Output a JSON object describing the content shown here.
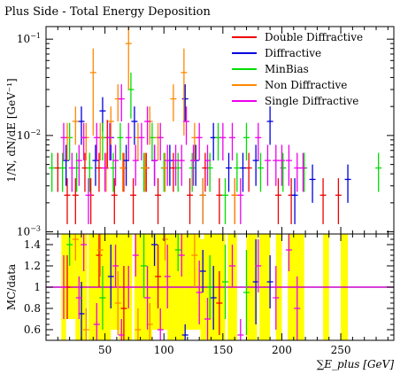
{
  "chart_data": [
    {
      "type": "scatter",
      "title": "Plus Side - Total Energy Deposition",
      "xlabel": "∑E_plus [GeV]",
      "ylabel": "1/N, dN/dE [GeV⁻¹]",
      "xlim": [
        0,
        295
      ],
      "ylim": [
        0.00095,
        0.135
      ],
      "yscale": "log",
      "y_ticks": [
        {
          "value": 0.001,
          "base": "10",
          "exp": "−3"
        },
        {
          "value": 0.01,
          "base": "10",
          "exp": "−2"
        },
        {
          "value": 0.1,
          "base": "10",
          "exp": "−1"
        }
      ],
      "legend_position": "top-right",
      "series": [
        {
          "name": "Double Diffractive",
          "color": "#ee0000",
          "points": [
            [
              10,
              0.0046,
              0.002
            ],
            [
              18,
              0.0024,
              0.0012
            ],
            [
              25,
              0.0024,
              0.0012
            ],
            [
              33,
              0.0046,
              0.002
            ],
            [
              38,
              0.0024,
              0.0012
            ],
            [
              45,
              0.0046,
              0.002
            ],
            [
              52,
              0.0095,
              0.005
            ],
            [
              58,
              0.0024,
              0.0012
            ],
            [
              66,
              0.0046,
              0.002
            ],
            [
              74,
              0.0024,
              0.0012
            ],
            [
              85,
              0.0046,
              0.002
            ],
            [
              95,
              0.0024,
              0.0012
            ],
            [
              108,
              0.0046,
              0.002
            ],
            [
              122,
              0.0024,
              0.0012
            ],
            [
              135,
              0.0046,
              0.002
            ],
            [
              147,
              0.0024,
              0.0012
            ],
            [
              160,
              0.0024,
              0.0012
            ],
            [
              172,
              0.0046,
              0.002
            ],
            [
              197,
              0.0024,
              0.0012
            ],
            [
              208,
              0.0024,
              0.0012
            ],
            [
              235,
              0.0024,
              0.0012
            ],
            [
              248,
              0.0024,
              0.0012
            ]
          ]
        },
        {
          "name": "Diffractive",
          "color": "#0000dd",
          "points": [
            [
              17,
              0.0055,
              0.0025
            ],
            [
              30,
              0.014,
              0.006
            ],
            [
              42,
              0.0055,
              0.0025
            ],
            [
              48,
              0.018,
              0.007
            ],
            [
              55,
              0.0095,
              0.004
            ],
            [
              68,
              0.0055,
              0.0025
            ],
            [
              75,
              0.014,
              0.006
            ],
            [
              92,
              0.0055,
              0.0025
            ],
            [
              105,
              0.0055,
              0.0025
            ],
            [
              118,
              0.024,
              0.01
            ],
            [
              127,
              0.0055,
              0.0025
            ],
            [
              133,
              0.0024,
              0.0012
            ],
            [
              142,
              0.0095,
              0.004
            ],
            [
              155,
              0.0046,
              0.002
            ],
            [
              167,
              0.0046,
              0.002
            ],
            [
              178,
              0.0055,
              0.0025
            ],
            [
              190,
              0.014,
              0.006
            ],
            [
              211,
              0.0024,
              0.0012
            ],
            [
              226,
              0.0035,
              0.0015
            ],
            [
              256,
              0.0035,
              0.0015
            ]
          ]
        },
        {
          "name": "MinBias",
          "color": "#00dd00",
          "points": [
            [
              5,
              0.0046,
              0.002
            ],
            [
              14,
              0.0046,
              0.002
            ],
            [
              20,
              0.0095,
              0.004
            ],
            [
              26,
              0.0046,
              0.002
            ],
            [
              37,
              0.0046,
              0.002
            ],
            [
              48,
              0.0095,
              0.004
            ],
            [
              57,
              0.0046,
              0.002
            ],
            [
              63,
              0.0095,
              0.004
            ],
            [
              72,
              0.03,
              0.015
            ],
            [
              83,
              0.0046,
              0.002
            ],
            [
              90,
              0.0095,
              0.004
            ],
            [
              100,
              0.0046,
              0.002
            ],
            [
              112,
              0.0046,
              0.002
            ],
            [
              124,
              0.0046,
              0.002
            ],
            [
              139,
              0.0046,
              0.002
            ],
            [
              146,
              0.0095,
              0.004
            ],
            [
              152,
              0.0024,
              0.0012
            ],
            [
              162,
              0.0046,
              0.002
            ],
            [
              170,
              0.0095,
              0.004
            ],
            [
              182,
              0.0046,
              0.002
            ],
            [
              201,
              0.0046,
              0.002
            ],
            [
              219,
              0.0046,
              0.002
            ],
            [
              282,
              0.0046,
              0.002
            ]
          ]
        },
        {
          "name": "Non Diffractive",
          "color": "#ff8800",
          "points": [
            [
              18,
              0.0095,
              0.004
            ],
            [
              25,
              0.014,
              0.006
            ],
            [
              34,
              0.0095,
              0.004
            ],
            [
              40,
              0.045,
              0.035
            ],
            [
              46,
              0.0095,
              0.004
            ],
            [
              51,
              0.0046,
              0.002
            ],
            [
              55,
              0.014,
              0.006
            ],
            [
              61,
              0.024,
              0.01
            ],
            [
              65,
              0.0046,
              0.002
            ],
            [
              70,
              0.09,
              0.06
            ],
            [
              78,
              0.0095,
              0.004
            ],
            [
              84,
              0.0046,
              0.002
            ],
            [
              88,
              0.014,
              0.006
            ],
            [
              95,
              0.0095,
              0.004
            ],
            [
              101,
              0.0046,
              0.002
            ],
            [
              108,
              0.024,
              0.01
            ],
            [
              117,
              0.045,
              0.035
            ],
            [
              126,
              0.0095,
              0.004
            ],
            [
              133,
              0.0024,
              0.0012
            ],
            [
              160,
              0.0024,
              0.0012
            ]
          ]
        },
        {
          "name": "Single Diffractive",
          "color": "#ee00ee",
          "points": [
            [
              15,
              0.0095,
              0.004
            ],
            [
              22,
              0.0046,
              0.002
            ],
            [
              28,
              0.0055,
              0.0025
            ],
            [
              32,
              0.0095,
              0.004
            ],
            [
              36,
              0.0024,
              0.0012
            ],
            [
              43,
              0.0095,
              0.004
            ],
            [
              50,
              0.0046,
              0.002
            ],
            [
              54,
              0.0095,
              0.004
            ],
            [
              59,
              0.0055,
              0.0025
            ],
            [
              64,
              0.024,
              0.01
            ],
            [
              70,
              0.0095,
              0.004
            ],
            [
              76,
              0.0055,
              0.0025
            ],
            [
              81,
              0.0095,
              0.004
            ],
            [
              86,
              0.014,
              0.006
            ],
            [
              92,
              0.0055,
              0.0025
            ],
            [
              97,
              0.0095,
              0.004
            ],
            [
              103,
              0.0055,
              0.0025
            ],
            [
              110,
              0.0055,
              0.0025
            ],
            [
              115,
              0.0055,
              0.0025
            ],
            [
              119,
              0.014,
              0.006
            ],
            [
              125,
              0.0055,
              0.0025
            ],
            [
              130,
              0.0095,
              0.004
            ],
            [
              137,
              0.0055,
              0.0025
            ],
            [
              150,
              0.0095,
              0.004
            ],
            [
              158,
              0.0095,
              0.004
            ],
            [
              165,
              0.0024,
              0.0012
            ],
            [
              180,
              0.0095,
              0.004
            ],
            [
              188,
              0.0055,
              0.0025
            ],
            [
              195,
              0.0055,
              0.0025
            ],
            [
              200,
              0.0055,
              0.0025
            ],
            [
              206,
              0.0055,
              0.0025
            ],
            [
              213,
              0.0046,
              0.002
            ],
            [
              218,
              0.0046,
              0.002
            ]
          ]
        }
      ]
    },
    {
      "type": "scatter",
      "xlabel": "∑E_plus [GeV]",
      "ylabel": "MC/data",
      "xlim": [
        0,
        295
      ],
      "ylim": [
        0.5,
        1.5
      ],
      "x_ticks": [
        50,
        100,
        150,
        200,
        250
      ],
      "y_ticks": [
        0.6,
        0.8,
        1,
        1.2,
        1.4
      ],
      "reference_line": {
        "value": 1.0,
        "color": "#cc00cc"
      },
      "error_band": {
        "color": "#ffff00",
        "segments": [
          [
            13,
            17,
            0.5,
            1.5
          ],
          [
            17,
            25,
            0.7,
            1.5
          ],
          [
            25,
            35,
            0.5,
            1.5
          ],
          [
            36,
            55,
            0.5,
            1.5
          ],
          [
            55,
            62,
            0.6,
            1.5
          ],
          [
            62,
            73,
            0.5,
            1.5
          ],
          [
            75,
            90,
            0.5,
            1.5
          ],
          [
            90,
            103,
            0.6,
            1.5
          ],
          [
            103,
            118,
            0.5,
            1.5
          ],
          [
            118,
            131,
            0.6,
            1.5
          ],
          [
            131,
            134,
            0.5,
            1.45
          ],
          [
            134,
            152,
            0.5,
            1.5
          ],
          [
            154,
            162,
            0.5,
            1.5
          ],
          [
            170,
            179,
            0.5,
            1.5
          ],
          [
            181,
            190,
            0.5,
            1.5
          ],
          [
            195,
            200,
            0.5,
            1.5
          ],
          [
            205,
            219,
            0.5,
            1.5
          ],
          [
            235,
            240,
            0.5,
            1.5
          ],
          [
            250,
            256,
            0.5,
            1.5
          ]
        ]
      },
      "series": [
        {
          "name": "Double Diffractive",
          "color": "#ee0000",
          "points": [
            [
              18,
              1.0,
              0.3
            ],
            [
              45,
              1.3,
              0.3
            ],
            [
              66,
              0.8,
              0.4
            ],
            [
              95,
              1.1,
              0.3
            ],
            [
              147,
              0.85,
              0.3
            ]
          ]
        },
        {
          "name": "Diffractive",
          "color": "#0000dd",
          "points": [
            [
              30,
              0.75,
              0.3
            ],
            [
              55,
              1.1,
              0.3
            ],
            [
              92,
              1.4,
              0.2
            ],
            [
              118,
              0.55,
              0.1
            ],
            [
              133,
              1.15,
              0.2
            ],
            [
              142,
              0.9,
              0.3
            ],
            [
              178,
              1.05,
              0.4
            ],
            [
              190,
              1.05,
              0.25
            ]
          ]
        },
        {
          "name": "MinBias",
          "color": "#00dd00",
          "points": [
            [
              20,
              1.4,
              0.2
            ],
            [
              48,
              0.9,
              0.3
            ],
            [
              83,
              1.2,
              0.3
            ],
            [
              112,
              1.35,
              0.2
            ],
            [
              139,
              1.0,
              0.3
            ],
            [
              152,
              1.05,
              0.35
            ],
            [
              170,
              0.95,
              0.4
            ]
          ]
        },
        {
          "name": "Non Diffractive",
          "color": "#ff8800",
          "points": [
            [
              25,
              1.45,
              0.2
            ],
            [
              34,
              0.6,
              0.2
            ],
            [
              46,
              1.35,
              0.25
            ],
            [
              61,
              0.85,
              0.3
            ],
            [
              78,
              0.6,
              0.2
            ],
            [
              88,
              0.65,
              0.2
            ],
            [
              101,
              1.45,
              0.2
            ],
            [
              126,
              1.3,
              0.3
            ]
          ]
        },
        {
          "name": "Single Diffractive",
          "color": "#ee00ee",
          "points": [
            [
              15,
              1.0,
              0.3
            ],
            [
              28,
              0.9,
              0.2
            ],
            [
              32,
              1.4,
              0.25
            ],
            [
              43,
              0.65,
              0.2
            ],
            [
              59,
              1.2,
              0.2
            ],
            [
              64,
              0.55,
              0.15
            ],
            [
              70,
              1.0,
              0.2
            ],
            [
              76,
              1.3,
              0.2
            ],
            [
              86,
              0.9,
              0.3
            ],
            [
              97,
              0.6,
              0.2
            ],
            [
              103,
              1.1,
              0.3
            ],
            [
              115,
              1.3,
              0.2
            ],
            [
              130,
              0.95,
              0.3
            ],
            [
              137,
              0.7,
              0.2
            ],
            [
              158,
              1.2,
              0.2
            ],
            [
              165,
              0.55,
              0.15
            ],
            [
              180,
              1.2,
              0.25
            ],
            [
              195,
              0.9,
              0.3
            ],
            [
              206,
              1.35,
              0.2
            ],
            [
              213,
              0.8,
              0.3
            ]
          ]
        }
      ]
    }
  ]
}
